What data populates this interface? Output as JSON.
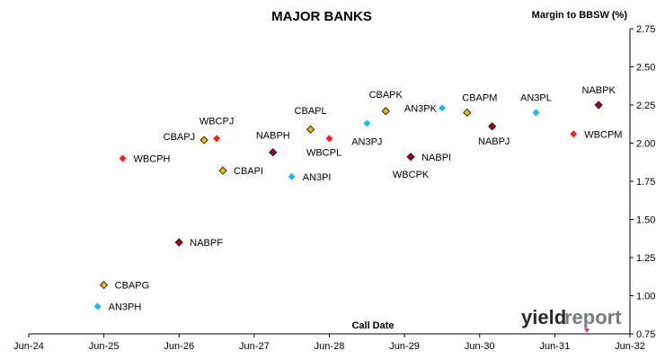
{
  "chart_data": {
    "type": "scatter",
    "title": "MAJOR BANKS",
    "ylabel": "Margin to BBSW (%)",
    "xlabel": "Call Date",
    "ylim": [
      0.75,
      2.75
    ],
    "xlim": [
      "Jun-24",
      "Jun-32"
    ],
    "x_ticks": [
      "Jun-24",
      "Jun-25",
      "Jun-26",
      "Jun-27",
      "Jun-28",
      "Jun-29",
      "Jun-30",
      "Jun-31",
      "Jun-32"
    ],
    "y_ticks": [
      "0.75",
      "1.00",
      "1.25",
      "1.50",
      "1.75",
      "2.00",
      "2.25",
      "2.50",
      "2.75"
    ],
    "grid": false,
    "colors": {
      "WBC": "#ff1a1a",
      "CBA": "#f5b800",
      "NAB": "#b0001a",
      "ANZ": "#1ab8f0"
    },
    "points": [
      {
        "label": "AN3PH",
        "x": "2025-05",
        "y": 0.93,
        "bank": "ANZ"
      },
      {
        "label": "CBAPG",
        "x": "2025-06",
        "y": 1.07,
        "bank": "CBA"
      },
      {
        "label": "WBCPH",
        "x": "2025-09",
        "y": 1.9,
        "bank": "WBC"
      },
      {
        "label": "NABPF",
        "x": "2026-06",
        "y": 1.35,
        "bank": "NAB"
      },
      {
        "label": "CBAPJ",
        "x": "2026-10",
        "y": 2.02,
        "bank": "CBA"
      },
      {
        "label": "WBCPJ",
        "x": "2026-12",
        "y": 2.03,
        "bank": "WBC"
      },
      {
        "label": "CBAPI",
        "x": "2027-01",
        "y": 1.82,
        "bank": "CBA"
      },
      {
        "label": "NABPH",
        "x": "2027-09",
        "y": 1.94,
        "bank": "NAB"
      },
      {
        "label": "AN3PI",
        "x": "2027-12",
        "y": 1.78,
        "bank": "ANZ"
      },
      {
        "label": "CBAPL",
        "x": "2028-03",
        "y": 2.09,
        "bank": "CBA"
      },
      {
        "label": "WBCPL",
        "x": "2028-06",
        "y": 2.03,
        "bank": "WBC"
      },
      {
        "label": "AN3PJ",
        "x": "2028-12",
        "y": 2.13,
        "bank": "ANZ"
      },
      {
        "label": "CBAPK",
        "x": "2029-03",
        "y": 2.21,
        "bank": "CBA"
      },
      {
        "label": "NABPI",
        "x": "2029-07",
        "y": 1.91,
        "bank": "NAB"
      },
      {
        "label": "AN3PK",
        "x": "2029-12",
        "y": 2.23,
        "bank": "ANZ"
      },
      {
        "label": "CBAPM",
        "x": "2030-04",
        "y": 2.2,
        "bank": "CBA"
      },
      {
        "label": "NABPJ",
        "x": "2030-08",
        "y": 2.11,
        "bank": "NAB"
      },
      {
        "label": "AN3PL",
        "x": "2031-03",
        "y": 2.2,
        "bank": "ANZ"
      },
      {
        "label": "WBCPM",
        "x": "2031-09",
        "y": 2.06,
        "bank": "WBC"
      },
      {
        "label": "NABPK",
        "x": "2032-01",
        "y": 2.25,
        "bank": "NAB"
      }
    ],
    "floating_labels": [
      {
        "text": "WBCPK",
        "near": "NABPI"
      }
    ]
  },
  "logo": {
    "part1": "yield",
    "part2": "report"
  }
}
